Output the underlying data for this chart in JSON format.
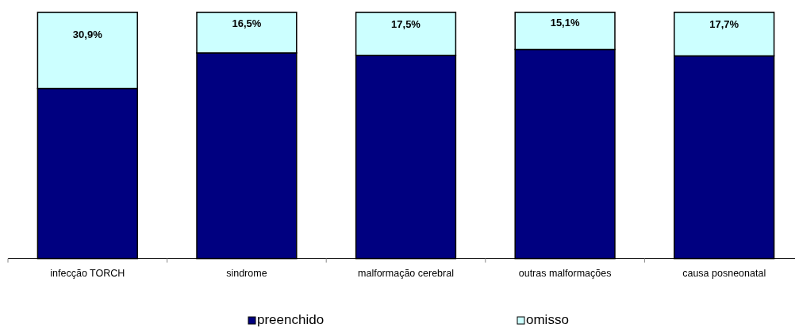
{
  "chart_data": {
    "type": "bar",
    "stacked": true,
    "legend": "bottom",
    "categories": [
      "infecção TORCH",
      "sindrome",
      "malformação cerebral",
      "outras malformações",
      "causa posneonatal"
    ],
    "ylim": [
      0,
      100
    ],
    "series": [
      {
        "name": "preenchido",
        "color": "#000080",
        "values": [
          69.1,
          83.5,
          82.5,
          84.9,
          82.3
        ]
      },
      {
        "name": "omisso",
        "color": "#ccffff",
        "values": [
          30.9,
          16.5,
          17.5,
          15.1,
          17.7
        ],
        "value_labels": [
          "30,9%",
          "16,5%",
          "17,5%",
          "15,1%",
          "17,7%"
        ]
      }
    ]
  }
}
